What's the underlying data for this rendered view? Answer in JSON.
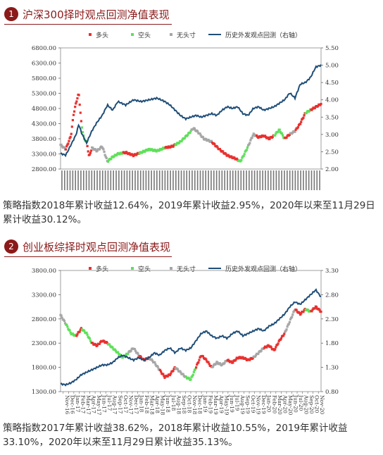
{
  "sections": [
    {
      "number": "1",
      "title": "沪深300择时观点回测净值表现",
      "caption": "策略指数2018年累计收益12.64%，2019年累计收益2.95%，2020年以来至11月29日累计收益30.12%。"
    },
    {
      "number": "2",
      "title": "创业板综择时观点回测净值表现",
      "caption": "策略指数2017年累计收益38.62%，2018年累计收益10.55%，2019年累计收益33.10%，2020年以来至11月29日累计收益35.13%。"
    }
  ],
  "legend": {
    "long": "多头",
    "short": "空头",
    "none": "无头寸",
    "line": "历史外发观点回测（右轴）"
  },
  "colors": {
    "long": "#e8312f",
    "short": "#5ee05a",
    "none": "#a6a6a6",
    "line": "#1f4e79"
  },
  "chart_data": [
    {
      "type": "line",
      "title": "",
      "y_left": {
        "ticks": [
          "2800.00",
          "3300.00",
          "3800.00",
          "4300.00",
          "4800.00",
          "5300.00",
          "5800.00",
          "6300.00",
          "6800.00"
        ],
        "range": [
          2800,
          6800
        ]
      },
      "y_right": {
        "ticks": [
          "2.00",
          "2.50",
          "3.00",
          "3.50",
          "4.00",
          "4.50",
          "5.00",
          "5.50"
        ],
        "range": [
          2.0,
          5.5
        ]
      },
      "index_series": [
        {
          "t": 0.0,
          "v": 3600
        },
        {
          "t": 0.02,
          "v": 3450
        },
        {
          "t": 0.04,
          "v": 3900
        },
        {
          "t": 0.05,
          "v": 4600
        },
        {
          "t": 0.06,
          "v": 5000
        },
        {
          "t": 0.07,
          "v": 5300
        },
        {
          "t": 0.08,
          "v": 4300
        },
        {
          "t": 0.09,
          "v": 3800
        },
        {
          "t": 0.1,
          "v": 3700
        },
        {
          "t": 0.11,
          "v": 3200
        },
        {
          "t": 0.12,
          "v": 3500
        },
        {
          "t": 0.14,
          "v": 3400
        },
        {
          "t": 0.16,
          "v": 3550
        },
        {
          "t": 0.18,
          "v": 3050
        },
        {
          "t": 0.2,
          "v": 3200
        },
        {
          "t": 0.22,
          "v": 3300
        },
        {
          "t": 0.25,
          "v": 3350
        },
        {
          "t": 0.28,
          "v": 3250
        },
        {
          "t": 0.31,
          "v": 3350
        },
        {
          "t": 0.34,
          "v": 3450
        },
        {
          "t": 0.37,
          "v": 3400
        },
        {
          "t": 0.4,
          "v": 3500
        },
        {
          "t": 0.43,
          "v": 3550
        },
        {
          "t": 0.46,
          "v": 3700
        },
        {
          "t": 0.49,
          "v": 3950
        },
        {
          "t": 0.51,
          "v": 4150
        },
        {
          "t": 0.53,
          "v": 4000
        },
        {
          "t": 0.55,
          "v": 3800
        },
        {
          "t": 0.58,
          "v": 3700
        },
        {
          "t": 0.61,
          "v": 3450
        },
        {
          "t": 0.64,
          "v": 3250
        },
        {
          "t": 0.67,
          "v": 3150
        },
        {
          "t": 0.69,
          "v": 3050
        },
        {
          "t": 0.7,
          "v": 3200
        },
        {
          "t": 0.72,
          "v": 3550
        },
        {
          "t": 0.74,
          "v": 3950
        },
        {
          "t": 0.76,
          "v": 3850
        },
        {
          "t": 0.78,
          "v": 3900
        },
        {
          "t": 0.8,
          "v": 3800
        },
        {
          "t": 0.82,
          "v": 3900
        },
        {
          "t": 0.84,
          "v": 4100
        },
        {
          "t": 0.86,
          "v": 3800
        },
        {
          "t": 0.88,
          "v": 3950
        },
        {
          "t": 0.9,
          "v": 4050
        },
        {
          "t": 0.92,
          "v": 4300
        },
        {
          "t": 0.94,
          "v": 4650
        },
        {
          "t": 0.96,
          "v": 4750
        },
        {
          "t": 0.98,
          "v": 4850
        },
        {
          "t": 1.0,
          "v": 4950
        }
      ],
      "line_series": [
        {
          "t": 0.0,
          "v": 2.45
        },
        {
          "t": 0.02,
          "v": 2.4
        },
        {
          "t": 0.04,
          "v": 2.7
        },
        {
          "t": 0.06,
          "v": 3.0
        },
        {
          "t": 0.07,
          "v": 3.3
        },
        {
          "t": 0.08,
          "v": 3.05
        },
        {
          "t": 0.09,
          "v": 2.9
        },
        {
          "t": 0.1,
          "v": 2.75
        },
        {
          "t": 0.12,
          "v": 3.1
        },
        {
          "t": 0.14,
          "v": 3.35
        },
        {
          "t": 0.16,
          "v": 3.55
        },
        {
          "t": 0.18,
          "v": 3.85
        },
        {
          "t": 0.2,
          "v": 3.7
        },
        {
          "t": 0.22,
          "v": 3.95
        },
        {
          "t": 0.25,
          "v": 3.85
        },
        {
          "t": 0.28,
          "v": 4.0
        },
        {
          "t": 0.31,
          "v": 3.95
        },
        {
          "t": 0.34,
          "v": 4.0
        },
        {
          "t": 0.37,
          "v": 4.05
        },
        {
          "t": 0.4,
          "v": 3.95
        },
        {
          "t": 0.42,
          "v": 3.85
        },
        {
          "t": 0.44,
          "v": 3.7
        },
        {
          "t": 0.46,
          "v": 3.55
        },
        {
          "t": 0.48,
          "v": 3.45
        },
        {
          "t": 0.5,
          "v": 3.5
        },
        {
          "t": 0.52,
          "v": 3.55
        },
        {
          "t": 0.54,
          "v": 3.5
        },
        {
          "t": 0.56,
          "v": 3.55
        },
        {
          "t": 0.58,
          "v": 3.6
        },
        {
          "t": 0.6,
          "v": 3.55
        },
        {
          "t": 0.62,
          "v": 3.7
        },
        {
          "t": 0.64,
          "v": 3.8
        },
        {
          "t": 0.66,
          "v": 3.75
        },
        {
          "t": 0.68,
          "v": 3.8
        },
        {
          "t": 0.7,
          "v": 3.6
        },
        {
          "t": 0.72,
          "v": 3.55
        },
        {
          "t": 0.74,
          "v": 3.75
        },
        {
          "t": 0.76,
          "v": 3.8
        },
        {
          "t": 0.78,
          "v": 3.7
        },
        {
          "t": 0.8,
          "v": 3.75
        },
        {
          "t": 0.82,
          "v": 3.8
        },
        {
          "t": 0.84,
          "v": 3.9
        },
        {
          "t": 0.86,
          "v": 4.0
        },
        {
          "t": 0.88,
          "v": 4.2
        },
        {
          "t": 0.9,
          "v": 4.05
        },
        {
          "t": 0.92,
          "v": 4.45
        },
        {
          "t": 0.94,
          "v": 4.5
        },
        {
          "t": 0.96,
          "v": 4.65
        },
        {
          "t": 0.98,
          "v": 4.95
        },
        {
          "t": 1.0,
          "v": 5.0
        }
      ],
      "regimes": [
        {
          "from": 0.0,
          "to": 0.02,
          "state": "none"
        },
        {
          "from": 0.02,
          "to": 0.08,
          "state": "long"
        },
        {
          "from": 0.08,
          "to": 0.1,
          "state": "short"
        },
        {
          "from": 0.1,
          "to": 0.12,
          "state": "long"
        },
        {
          "from": 0.12,
          "to": 0.18,
          "state": "none"
        },
        {
          "from": 0.18,
          "to": 0.24,
          "state": "short"
        },
        {
          "from": 0.24,
          "to": 0.3,
          "state": "long"
        },
        {
          "from": 0.3,
          "to": 0.4,
          "state": "short"
        },
        {
          "from": 0.4,
          "to": 0.44,
          "state": "long"
        },
        {
          "from": 0.44,
          "to": 0.5,
          "state": "short"
        },
        {
          "from": 0.5,
          "to": 0.58,
          "state": "none"
        },
        {
          "from": 0.58,
          "to": 0.68,
          "state": "long"
        },
        {
          "from": 0.68,
          "to": 0.72,
          "state": "short"
        },
        {
          "from": 0.72,
          "to": 0.75,
          "state": "none"
        },
        {
          "from": 0.75,
          "to": 0.82,
          "state": "long"
        },
        {
          "from": 0.82,
          "to": 0.86,
          "state": "short"
        },
        {
          "from": 0.86,
          "to": 0.88,
          "state": "long"
        },
        {
          "from": 0.88,
          "to": 0.9,
          "state": "none"
        },
        {
          "from": 0.9,
          "to": 0.94,
          "state": "long"
        },
        {
          "from": 0.94,
          "to": 0.96,
          "state": "short"
        },
        {
          "from": 0.96,
          "to": 1.0,
          "state": "long"
        }
      ]
    },
    {
      "type": "line",
      "title": "",
      "y_left": {
        "ticks": [
          "1300.00",
          "1800.00",
          "2300.00",
          "2800.00",
          "3300.00",
          "3800.00"
        ],
        "range": [
          1300,
          3800
        ]
      },
      "y_right": {
        "ticks": [
          "0.80",
          "1.30",
          "1.80",
          "2.30",
          "2.80",
          "3.30"
        ],
        "range": [
          0.8,
          3.3
        ]
      },
      "x_ticks": [
        "Nov-16",
        "Dec-16",
        "Jan-17",
        "Feb-17",
        "Mar-17",
        "Apr-17",
        "May-17",
        "Jun-17",
        "Jul-17",
        "Aug-17",
        "Sep-17",
        "Oct-17",
        "Nov-17",
        "Dec-17",
        "Jan-18",
        "Feb-18",
        "Mar-18",
        "Apr-18",
        "May-18",
        "Jun-18",
        "Jul-18",
        "Aug-18",
        "Sep-18",
        "Oct-18",
        "Nov-18",
        "Dec-18",
        "Jan-19",
        "Feb-19",
        "Mar-19",
        "Apr-19",
        "May-19",
        "Jun-19",
        "Jul-19",
        "Aug-19",
        "Sep-19",
        "Oct-19",
        "Nov-19",
        "Dec-19",
        "Jan-20",
        "Feb-20",
        "Mar-20",
        "Apr-20",
        "May-20",
        "Jun-20",
        "Jul-20",
        "Aug-20",
        "Sep-20",
        "Oct-20",
        "Nov-20"
      ],
      "index_series": [
        {
          "t": 0.0,
          "v": 2880
        },
        {
          "t": 0.02,
          "v": 2700
        },
        {
          "t": 0.04,
          "v": 2500
        },
        {
          "t": 0.06,
          "v": 2450
        },
        {
          "t": 0.08,
          "v": 2600
        },
        {
          "t": 0.1,
          "v": 2500
        },
        {
          "t": 0.12,
          "v": 2300
        },
        {
          "t": 0.14,
          "v": 2250
        },
        {
          "t": 0.16,
          "v": 2350
        },
        {
          "t": 0.18,
          "v": 2300
        },
        {
          "t": 0.2,
          "v": 2200
        },
        {
          "t": 0.22,
          "v": 2100
        },
        {
          "t": 0.24,
          "v": 2000
        },
        {
          "t": 0.26,
          "v": 2100
        },
        {
          "t": 0.28,
          "v": 2200
        },
        {
          "t": 0.3,
          "v": 2050
        },
        {
          "t": 0.32,
          "v": 1950
        },
        {
          "t": 0.34,
          "v": 2000
        },
        {
          "t": 0.36,
          "v": 1900
        },
        {
          "t": 0.38,
          "v": 1750
        },
        {
          "t": 0.4,
          "v": 1600
        },
        {
          "t": 0.42,
          "v": 1650
        },
        {
          "t": 0.44,
          "v": 1800
        },
        {
          "t": 0.46,
          "v": 1700
        },
        {
          "t": 0.48,
          "v": 1600
        },
        {
          "t": 0.5,
          "v": 1550
        },
        {
          "t": 0.52,
          "v": 1800
        },
        {
          "t": 0.54,
          "v": 2050
        },
        {
          "t": 0.56,
          "v": 1950
        },
        {
          "t": 0.58,
          "v": 1800
        },
        {
          "t": 0.6,
          "v": 1900
        },
        {
          "t": 0.62,
          "v": 1850
        },
        {
          "t": 0.64,
          "v": 1950
        },
        {
          "t": 0.66,
          "v": 1900
        },
        {
          "t": 0.68,
          "v": 2000
        },
        {
          "t": 0.7,
          "v": 2000
        },
        {
          "t": 0.72,
          "v": 1950
        },
        {
          "t": 0.74,
          "v": 2000
        },
        {
          "t": 0.76,
          "v": 2100
        },
        {
          "t": 0.78,
          "v": 2200
        },
        {
          "t": 0.8,
          "v": 2250
        },
        {
          "t": 0.82,
          "v": 2150
        },
        {
          "t": 0.84,
          "v": 2350
        },
        {
          "t": 0.86,
          "v": 2500
        },
        {
          "t": 0.88,
          "v": 2750
        },
        {
          "t": 0.9,
          "v": 3000
        },
        {
          "t": 0.92,
          "v": 2900
        },
        {
          "t": 0.94,
          "v": 3000
        },
        {
          "t": 0.96,
          "v": 2950
        },
        {
          "t": 0.98,
          "v": 3050
        },
        {
          "t": 1.0,
          "v": 2950
        }
      ],
      "line_series": [
        {
          "t": 0.0,
          "v": 0.96
        },
        {
          "t": 0.02,
          "v": 0.94
        },
        {
          "t": 0.04,
          "v": 0.98
        },
        {
          "t": 0.06,
          "v": 1.05
        },
        {
          "t": 0.08,
          "v": 1.15
        },
        {
          "t": 0.1,
          "v": 1.2
        },
        {
          "t": 0.12,
          "v": 1.25
        },
        {
          "t": 0.14,
          "v": 1.3
        },
        {
          "t": 0.16,
          "v": 1.35
        },
        {
          "t": 0.18,
          "v": 1.35
        },
        {
          "t": 0.2,
          "v": 1.4
        },
        {
          "t": 0.22,
          "v": 1.5
        },
        {
          "t": 0.24,
          "v": 1.55
        },
        {
          "t": 0.26,
          "v": 1.5
        },
        {
          "t": 0.28,
          "v": 1.45
        },
        {
          "t": 0.3,
          "v": 1.5
        },
        {
          "t": 0.32,
          "v": 1.45
        },
        {
          "t": 0.34,
          "v": 1.5
        },
        {
          "t": 0.36,
          "v": 1.6
        },
        {
          "t": 0.38,
          "v": 1.55
        },
        {
          "t": 0.4,
          "v": 1.65
        },
        {
          "t": 0.42,
          "v": 1.7
        },
        {
          "t": 0.44,
          "v": 1.6
        },
        {
          "t": 0.46,
          "v": 1.7
        },
        {
          "t": 0.48,
          "v": 1.65
        },
        {
          "t": 0.5,
          "v": 1.7
        },
        {
          "t": 0.52,
          "v": 1.85
        },
        {
          "t": 0.54,
          "v": 2.0
        },
        {
          "t": 0.56,
          "v": 2.05
        },
        {
          "t": 0.58,
          "v": 1.95
        },
        {
          "t": 0.6,
          "v": 1.9
        },
        {
          "t": 0.62,
          "v": 1.95
        },
        {
          "t": 0.64,
          "v": 1.9
        },
        {
          "t": 0.66,
          "v": 2.0
        },
        {
          "t": 0.68,
          "v": 2.05
        },
        {
          "t": 0.7,
          "v": 1.95
        },
        {
          "t": 0.72,
          "v": 2.0
        },
        {
          "t": 0.74,
          "v": 2.05
        },
        {
          "t": 0.76,
          "v": 2.1
        },
        {
          "t": 0.78,
          "v": 2.05
        },
        {
          "t": 0.8,
          "v": 2.15
        },
        {
          "t": 0.82,
          "v": 2.2
        },
        {
          "t": 0.84,
          "v": 2.3
        },
        {
          "t": 0.86,
          "v": 2.4
        },
        {
          "t": 0.88,
          "v": 2.55
        },
        {
          "t": 0.9,
          "v": 2.65
        },
        {
          "t": 0.92,
          "v": 2.6
        },
        {
          "t": 0.94,
          "v": 2.7
        },
        {
          "t": 0.96,
          "v": 2.8
        },
        {
          "t": 0.98,
          "v": 2.9
        },
        {
          "t": 1.0,
          "v": 2.75
        }
      ],
      "regimes": [
        {
          "from": 0.0,
          "to": 0.02,
          "state": "none"
        },
        {
          "from": 0.02,
          "to": 0.06,
          "state": "short"
        },
        {
          "from": 0.06,
          "to": 0.08,
          "state": "long"
        },
        {
          "from": 0.08,
          "to": 0.12,
          "state": "short"
        },
        {
          "from": 0.12,
          "to": 0.18,
          "state": "long"
        },
        {
          "from": 0.18,
          "to": 0.26,
          "state": "short"
        },
        {
          "from": 0.26,
          "to": 0.3,
          "state": "none"
        },
        {
          "from": 0.3,
          "to": 0.34,
          "state": "long"
        },
        {
          "from": 0.34,
          "to": 0.38,
          "state": "none"
        },
        {
          "from": 0.38,
          "to": 0.44,
          "state": "long"
        },
        {
          "from": 0.44,
          "to": 0.48,
          "state": "none"
        },
        {
          "from": 0.48,
          "to": 0.52,
          "state": "short"
        },
        {
          "from": 0.52,
          "to": 0.58,
          "state": "long"
        },
        {
          "from": 0.58,
          "to": 0.64,
          "state": "none"
        },
        {
          "from": 0.64,
          "to": 0.74,
          "state": "long"
        },
        {
          "from": 0.74,
          "to": 0.78,
          "state": "none"
        },
        {
          "from": 0.78,
          "to": 0.86,
          "state": "long"
        },
        {
          "from": 0.86,
          "to": 0.9,
          "state": "none"
        },
        {
          "from": 0.9,
          "to": 0.94,
          "state": "long"
        },
        {
          "from": 0.94,
          "to": 0.96,
          "state": "short"
        },
        {
          "from": 0.96,
          "to": 1.0,
          "state": "long"
        }
      ]
    }
  ]
}
